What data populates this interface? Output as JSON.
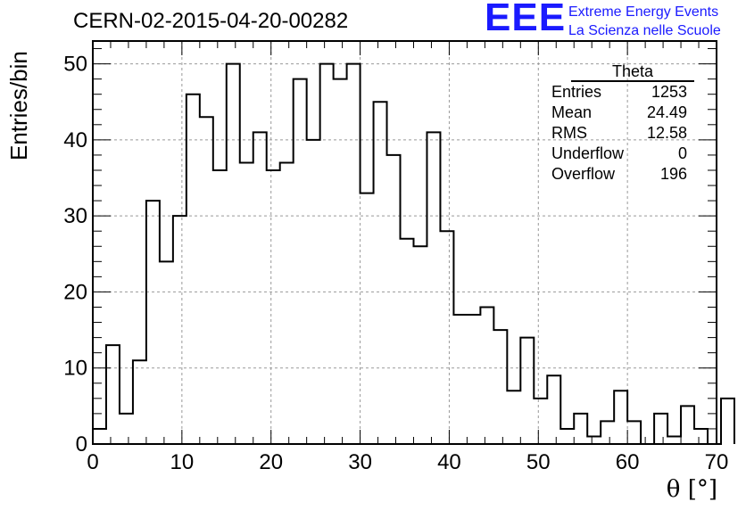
{
  "header": {
    "run_title": "CERN-02-2015-04-20-00282"
  },
  "logo": {
    "mark": "EEE",
    "line1": "Extreme Energy Events",
    "line2": "La Scienza nelle Scuole",
    "color": "#1a1aff"
  },
  "stats_box": {
    "title": "Theta",
    "rows": [
      {
        "label": "Entries",
        "value": "1253"
      },
      {
        "label": "Mean",
        "value": "24.49"
      },
      {
        "label": "RMS",
        "value": "12.58"
      },
      {
        "label": "Underflow",
        "value": "0"
      },
      {
        "label": "Overflow",
        "value": "196"
      }
    ]
  },
  "chart_data": {
    "type": "bar",
    "style": "step-histogram",
    "title": "CERN-02-2015-04-20-00282",
    "xlabel": "θ [°]",
    "ylabel": "Entries/bin",
    "xlim": [
      0,
      70
    ],
    "ylim": [
      0,
      53
    ],
    "bin_width": 1.5,
    "x_ticks": [
      0,
      10,
      20,
      30,
      40,
      50,
      60,
      70
    ],
    "y_ticks": [
      0,
      10,
      20,
      30,
      40,
      50
    ],
    "grid": true,
    "values": [
      2,
      13,
      4,
      11,
      32,
      24,
      30,
      46,
      43,
      36,
      50,
      37,
      41,
      36,
      37,
      48,
      40,
      50,
      48,
      50,
      33,
      45,
      38,
      27,
      26,
      41,
      28,
      17,
      17,
      18,
      15,
      7,
      14,
      6,
      9,
      2,
      4,
      1,
      3,
      7,
      3,
      0,
      4,
      1,
      5,
      2,
      0,
      6
    ]
  }
}
